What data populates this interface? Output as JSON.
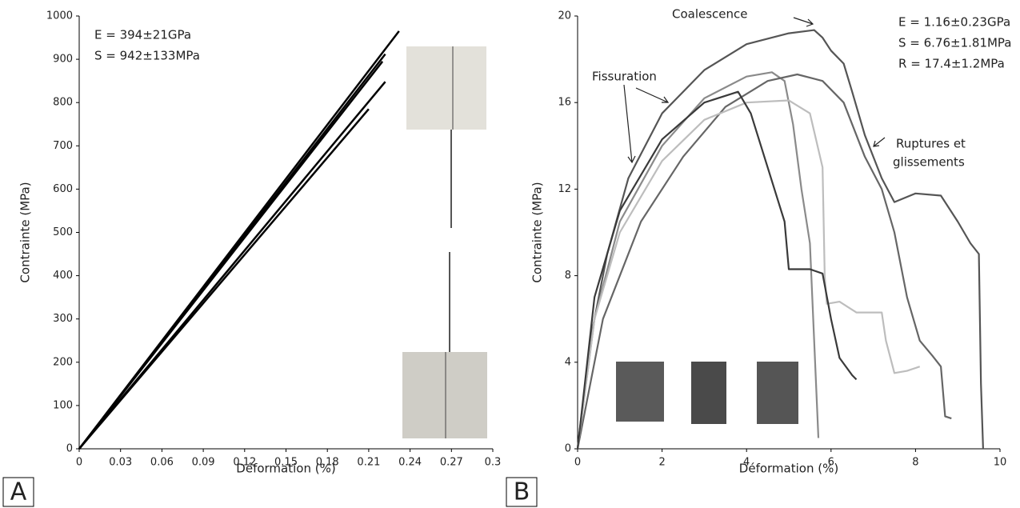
{
  "chart_data": [
    {
      "type": "line",
      "panel": "A",
      "x_label": "Déformation (%)",
      "y_label": "Contrainte (MPa)",
      "annotations": [
        "E = 394±21GPa",
        "S = 942±133MPa"
      ],
      "xlim": [
        0,
        0.3
      ],
      "xticks": [
        0,
        0.03,
        0.06,
        0.09,
        0.12,
        0.15,
        0.18,
        0.21,
        0.24,
        0.27,
        0.3
      ],
      "ylim": [
        0,
        1000
      ],
      "yticks": [
        0,
        100,
        200,
        300,
        400,
        500,
        600,
        700,
        800,
        900,
        1000
      ],
      "series": [
        {
          "color": "#000000",
          "x": [
            0,
            0.232
          ],
          "values": [
            0,
            965
          ]
        },
        {
          "color": "#000000",
          "x": [
            0,
            0.222
          ],
          "values": [
            0,
            912
          ]
        },
        {
          "color": "#000000",
          "x": [
            0,
            0.22
          ],
          "values": [
            0,
            895
          ]
        },
        {
          "color": "#000000",
          "x": [
            0,
            0.222
          ],
          "values": [
            0,
            848
          ]
        },
        {
          "color": "#000000",
          "x": [
            0,
            0.21
          ],
          "values": [
            0,
            785
          ]
        }
      ]
    },
    {
      "type": "line",
      "panel": "B",
      "x_label": "Déformation (%)",
      "y_label": "Contrainte (MPa)",
      "annotations": [
        "Coalescence",
        "Fissuration",
        "Ruptures et",
        "glissements",
        "E = 1.16±0.23GPa",
        "S = 6.76±1.81MPa",
        "R = 17.4±1.2MPa"
      ],
      "xlim": [
        0,
        10
      ],
      "xticks": [
        0,
        2,
        4,
        6,
        8,
        10
      ],
      "ylim": [
        0,
        20
      ],
      "yticks": [
        0,
        4,
        8,
        12,
        16,
        20
      ],
      "series": [
        {
          "color": "#555555",
          "x": [
            0,
            0.3,
            0.7,
            1.2,
            2,
            3,
            4,
            5,
            5.6,
            5.8,
            6,
            6.3,
            6.5,
            6.8,
            7.2,
            7.5,
            8,
            8.6,
            9,
            9.3,
            9.5,
            9.55,
            9.6
          ],
          "values": [
            0,
            5,
            9,
            12.5,
            15.5,
            17.5,
            18.7,
            19.2,
            19.35,
            19,
            18.4,
            17.8,
            16.5,
            14.5,
            12.5,
            11.4,
            11.8,
            11.7,
            10.5,
            9.5,
            9,
            3,
            0
          ]
        },
        {
          "color": "#8a8a8a",
          "x": [
            0,
            0.4,
            1,
            2,
            3,
            4,
            4.6,
            4.9,
            5.1,
            5.3,
            5.5,
            5.6,
            5.7
          ],
          "values": [
            0,
            6,
            10.5,
            14,
            16.2,
            17.2,
            17.4,
            17,
            15,
            12,
            9.5,
            5,
            0.5
          ]
        },
        {
          "color": "#666666",
          "x": [
            0,
            0.6,
            1.5,
            2.5,
            3.5,
            4.5,
            5.2,
            5.8,
            6.3,
            6.8,
            7.2,
            7.5,
            7.8,
            8.1,
            8.4,
            8.6,
            8.7,
            8.85
          ],
          "values": [
            0,
            6,
            10.5,
            13.5,
            15.8,
            17,
            17.3,
            17,
            16,
            13.5,
            12,
            10,
            7,
            5,
            4.3,
            3.8,
            1.5,
            1.4
          ]
        },
        {
          "color": "#bdbdbd",
          "x": [
            0,
            0.4,
            1,
            2,
            3,
            4,
            5,
            5.5,
            5.8,
            5.85,
            5.9,
            6.2,
            6.6,
            7.2,
            7.3,
            7.5,
            7.8,
            8.1
          ],
          "values": [
            0,
            6,
            10,
            13.3,
            15.2,
            16,
            16.1,
            15.5,
            13,
            8,
            6.7,
            6.8,
            6.3,
            6.3,
            5,
            3.5,
            3.6,
            3.8
          ]
        },
        {
          "color": "#3a3a3a",
          "x": [
            0,
            0.4,
            1,
            2,
            3,
            3.8,
            4.1,
            4.5,
            4.9,
            5,
            5.5,
            5.8,
            6,
            6.2,
            6.5,
            6.6
          ],
          "values": [
            0,
            7,
            11,
            14.3,
            16,
            16.5,
            15.5,
            13,
            10.5,
            8.3,
            8.3,
            8.1,
            6,
            4.2,
            3.4,
            3.2
          ]
        }
      ]
    }
  ]
}
